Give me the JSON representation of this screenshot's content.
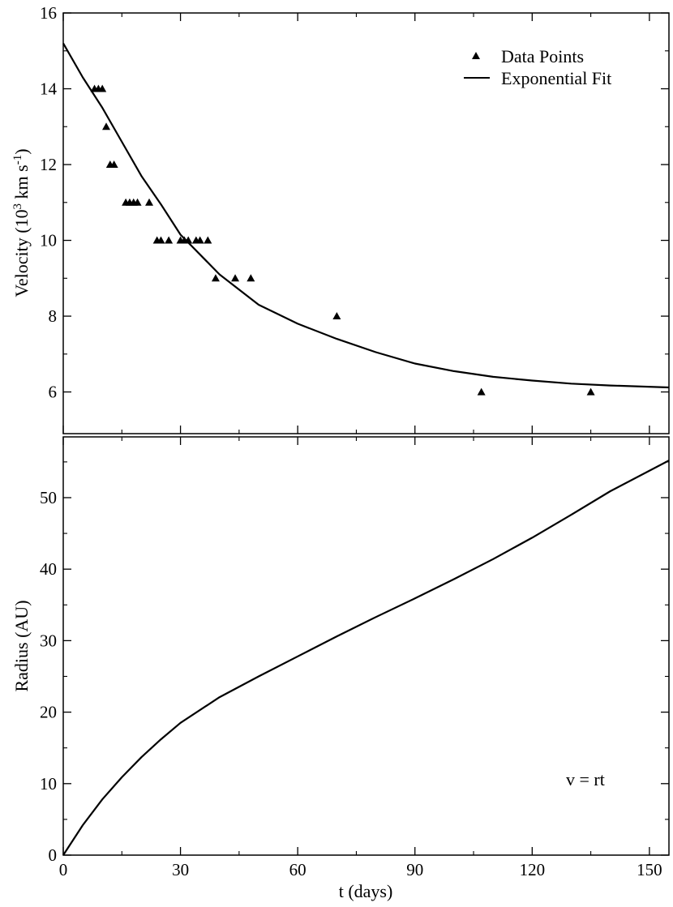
{
  "chart_data": [
    {
      "type": "scatter",
      "panel": "top",
      "xlabel": "",
      "ylabel": "Velocity (10^3 km s^-1)",
      "ylabel_parts": {
        "before": "Velocity (10",
        "exp1": "3",
        "middle": " km s",
        "exp2": "-1",
        "after": ")"
      },
      "xlim": [
        0,
        155
      ],
      "ylim": [
        4.9,
        16
      ],
      "xticks": [
        0,
        30,
        60,
        90,
        120,
        150
      ],
      "yticks": [
        6,
        8,
        10,
        12,
        14,
        16
      ],
      "grid": false,
      "legend_position": "top-right",
      "series": [
        {
          "name": "Data Points",
          "kind": "points",
          "marker": "triangle",
          "points": [
            [
              8,
              14
            ],
            [
              9,
              14
            ],
            [
              10,
              14
            ],
            [
              11,
              13
            ],
            [
              12,
              12
            ],
            [
              13,
              12
            ],
            [
              16,
              11
            ],
            [
              17,
              11
            ],
            [
              18,
              11
            ],
            [
              19,
              11
            ],
            [
              22,
              11
            ],
            [
              24,
              10
            ],
            [
              25,
              10
            ],
            [
              27,
              10
            ],
            [
              30,
              10
            ],
            [
              31,
              10
            ],
            [
              32,
              10
            ],
            [
              34,
              10
            ],
            [
              35,
              10
            ],
            [
              37,
              10
            ],
            [
              39,
              9
            ],
            [
              44,
              9
            ],
            [
              48,
              9
            ],
            [
              70,
              8
            ],
            [
              107,
              6
            ],
            [
              135,
              6
            ]
          ]
        },
        {
          "name": "Exponential Fit",
          "kind": "line",
          "points": [
            [
              0,
              15.2
            ],
            [
              5,
              14.3
            ],
            [
              10,
              13.5
            ],
            [
              15,
              12.6
            ],
            [
              20,
              11.7
            ],
            [
              25,
              10.95
            ],
            [
              30,
              10.15
            ],
            [
              40,
              9.1
            ],
            [
              50,
              8.3
            ],
            [
              60,
              7.8
            ],
            [
              70,
              7.4
            ],
            [
              80,
              7.05
            ],
            [
              90,
              6.75
            ],
            [
              100,
              6.55
            ],
            [
              110,
              6.4
            ],
            [
              120,
              6.3
            ],
            [
              130,
              6.22
            ],
            [
              140,
              6.17
            ],
            [
              155,
              6.12
            ]
          ]
        }
      ]
    },
    {
      "type": "line",
      "panel": "bottom",
      "xlabel": "t (days)",
      "ylabel": "Radius (AU)",
      "xlim": [
        0,
        155
      ],
      "ylim": [
        0,
        58.5
      ],
      "xticks": [
        0,
        30,
        60,
        90,
        120,
        150
      ],
      "yticks": [
        0,
        10,
        20,
        30,
        40,
        50
      ],
      "grid": false,
      "annotation": "v = rt",
      "series": [
        {
          "kind": "line",
          "points": [
            [
              0,
              0
            ],
            [
              5,
              4.2
            ],
            [
              10,
              7.8
            ],
            [
              15,
              10.9
            ],
            [
              20,
              13.7
            ],
            [
              25,
              16.2
            ],
            [
              30,
              18.5
            ],
            [
              40,
              22.1
            ],
            [
              50,
              25.0
            ],
            [
              60,
              27.8
            ],
            [
              70,
              30.6
            ],
            [
              80,
              33.3
            ],
            [
              90,
              35.9
            ],
            [
              100,
              38.6
            ],
            [
              110,
              41.4
            ],
            [
              120,
              44.4
            ],
            [
              130,
              47.6
            ],
            [
              140,
              50.9
            ],
            [
              155,
              55.2
            ]
          ]
        }
      ]
    }
  ]
}
